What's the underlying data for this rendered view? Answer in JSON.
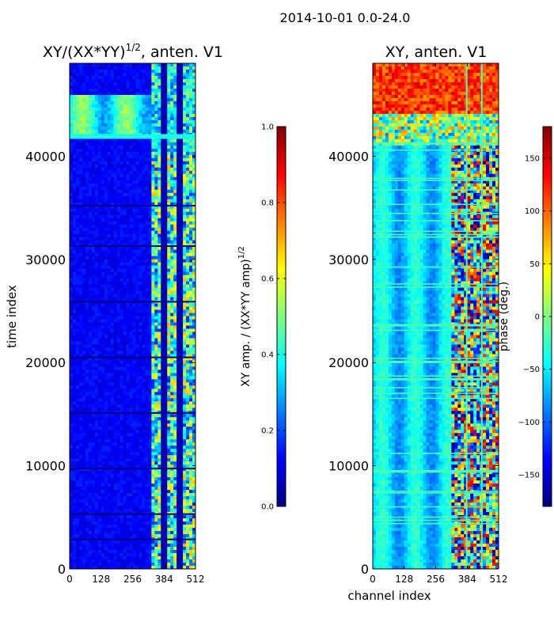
{
  "suptitle": "2014-10-01 0.0-24.0",
  "colors": {
    "background": "#ffffff",
    "axis": "#000000",
    "jet": [
      "#00007f",
      "#0000ff",
      "#007fff",
      "#00ffff",
      "#7fff7f",
      "#ffff00",
      "#ff7f00",
      "#ff0000",
      "#7f0000"
    ]
  },
  "chart_data": [
    {
      "type": "heatmap",
      "title_prefix": "XY/(XX*YY)",
      "title_exponent": "1/2",
      "title_suffix": ", anten. V1",
      "xlabel": "",
      "ylabel": "time index",
      "x_ticks": [
        0,
        128,
        256,
        384,
        512
      ],
      "x_tick_labels": [
        "0",
        "128",
        "256",
        "384",
        "512"
      ],
      "xlim": [
        0,
        512
      ],
      "y_ticks": [
        0,
        10000,
        20000,
        30000,
        40000
      ],
      "y_tick_labels": [
        "0",
        "10000",
        "20000",
        "30000",
        "40000"
      ],
      "ylim": [
        0,
        49000
      ],
      "colorbar": {
        "label_prefix": "XY amp. / (XX*YY amp)",
        "label_exponent": "1/2",
        "range": [
          0.0,
          1.0
        ],
        "ticks": [
          0.0,
          0.2,
          0.4,
          0.6,
          0.8,
          1.0
        ],
        "tick_labels": [
          "0.0",
          "0.2",
          "0.4",
          "0.6",
          "0.8",
          "1.0"
        ]
      }
    },
    {
      "type": "heatmap",
      "title": "XY, anten. V1",
      "xlabel": "channel index",
      "ylabel": "",
      "x_ticks": [
        0,
        128,
        256,
        384,
        512
      ],
      "x_tick_labels": [
        "0",
        "128",
        "256",
        "384",
        "512"
      ],
      "xlim": [
        0,
        512
      ],
      "y_ticks": [
        0,
        10000,
        20000,
        30000,
        40000
      ],
      "y_tick_labels": [
        "0",
        "10000",
        "20000",
        "30000",
        "40000"
      ],
      "ylim": [
        0,
        49000
      ],
      "colorbar": {
        "label": "phase (deg.)",
        "range": [
          -180,
          180
        ],
        "ticks": [
          -150,
          -100,
          -50,
          0,
          50,
          100,
          150
        ],
        "tick_labels": [
          "−150",
          "−100",
          "−50",
          "0",
          "50",
          "100",
          "150"
        ]
      }
    }
  ]
}
